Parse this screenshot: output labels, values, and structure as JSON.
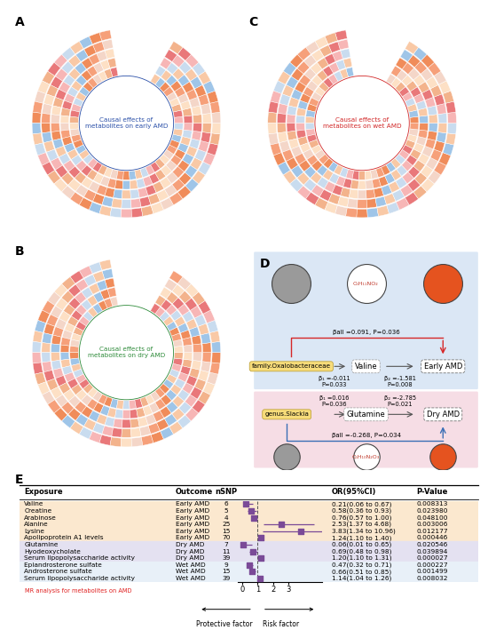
{
  "panels": [
    {
      "label": "A",
      "center_text": "Causal effects of\nmetabolites on early AMD",
      "color": "#2b50a8"
    },
    {
      "label": "B",
      "center_text": "Causal effects of\nmetabolites on dry AMD",
      "color": "#2e8b3a"
    },
    {
      "label": "C",
      "center_text": "Causal effects of\nmetabolites on wet AMD",
      "color": "#d22828"
    }
  ],
  "diagram": {
    "label": "D",
    "pathways": [
      {
        "exposure": "family.Oxalobacteraceae",
        "mediator": "Valine",
        "formula": "C₅H₁₁NO₂",
        "outcome": "Early AMD",
        "beta1": "β₁ =-0.011",
        "p1": "P=0.033",
        "beta2": "β₂ =-1.581",
        "p2": "P=0.008",
        "beta_all": "βall =0.091, P=0.036",
        "color": "#d62728"
      },
      {
        "exposure": "genus.Slackia",
        "mediator": "Glutamine",
        "formula": "C₅H₁₀N₂O₃",
        "outcome": "Dry AMD",
        "beta1": "β₁ =0.016",
        "p1": "P=0.036",
        "beta2": "β₂ =-2.785",
        "p2": "P=0.021",
        "beta_all": "βall =-0.268, P=0.034",
        "color": "#3b6fb6"
      }
    ]
  },
  "chart_data": {
    "type": "forest",
    "label": "E",
    "columns": [
      "Exposure",
      "Outcome",
      "nSNP",
      "OR(95%CI)",
      "P-Value"
    ],
    "xlim": [
      -0.3,
      5.2
    ],
    "xticks": [
      0,
      1,
      2,
      3
    ],
    "reference": 1,
    "color": "#7a4a97",
    "marker": "square",
    "left_label": "Protective factor",
    "right_label": "Risk factor",
    "caption": "MR analysis for metabolites on AMD",
    "rows": [
      {
        "exposure": "Valine",
        "outcome": "Early AMD",
        "nsnp": 6,
        "or": 0.21,
        "ci_low": 0.06,
        "ci_high": 0.67,
        "or_label": "0.21(0.06 to 0.67)",
        "p_value": "0.008313"
      },
      {
        "exposure": "Creatine",
        "outcome": "Early AMD",
        "nsnp": 5,
        "or": 0.58,
        "ci_low": 0.36,
        "ci_high": 0.93,
        "or_label": "0.58(0.36 to 0.93)",
        "p_value": "0.023980"
      },
      {
        "exposure": "Arabinose",
        "outcome": "Early AMD",
        "nsnp": 4,
        "or": 0.76,
        "ci_low": 0.57,
        "ci_high": 1.0,
        "or_label": "0.76(0.57 to 1.00)",
        "p_value": "0.048100"
      },
      {
        "exposure": "Alanine",
        "outcome": "Early AMD",
        "nsnp": 25,
        "or": 2.53,
        "ci_low": 1.37,
        "ci_high": 4.68,
        "or_label": "2.53(1.37 to 4.68)",
        "p_value": "0.003006"
      },
      {
        "exposure": "Lysine",
        "outcome": "Early AMD",
        "nsnp": 15,
        "or": 3.83,
        "ci_low": 1.34,
        "ci_high": 10.96,
        "or_label": "3.83(1.34 to 10.96)",
        "p_value": "0.012177"
      },
      {
        "exposure": "Apolipoprotein A1 levels",
        "outcome": "Early AMD",
        "nsnp": 70,
        "or": 1.24,
        "ci_low": 1.1,
        "ci_high": 1.4,
        "or_label": "1.24(1.10 to 1.40)",
        "p_value": "0.000446"
      },
      {
        "exposure": "Glutamine",
        "outcome": "Dry AMD",
        "nsnp": 7,
        "or": 0.06,
        "ci_low": 0.01,
        "ci_high": 0.65,
        "or_label": "0.06(0.01 to 0.65)",
        "p_value": "0.020546"
      },
      {
        "exposure": "Hyodeoxycholate",
        "outcome": "Dry AMD",
        "nsnp": 11,
        "or": 0.69,
        "ci_low": 0.48,
        "ci_high": 0.98,
        "or_label": "0.69(0.48 to 0.98)",
        "p_value": "0.039894"
      },
      {
        "exposure": "Serum lipopolysaccharide activity",
        "outcome": "Dry AMD",
        "nsnp": 39,
        "or": 1.2,
        "ci_low": 1.1,
        "ci_high": 1.31,
        "or_label": "1.20(1.10 to 1.31)",
        "p_value": "0.000027"
      },
      {
        "exposure": "Epiandrosterone sulfate",
        "outcome": "Wet AMD",
        "nsnp": 9,
        "or": 0.47,
        "ci_low": 0.32,
        "ci_high": 0.71,
        "or_label": "0.47(0.32 to 0.71)",
        "p_value": "0.000227"
      },
      {
        "exposure": "Androsterone sulfate",
        "outcome": "Wet AMD",
        "nsnp": 15,
        "or": 0.66,
        "ci_low": 0.51,
        "ci_high": 0.85,
        "or_label": "0.66(0.51 to 0.85)",
        "p_value": "0.001499"
      },
      {
        "exposure": "Serum lipopolysaccharide activity",
        "outcome": "Wet AMD",
        "nsnp": 39,
        "or": 1.14,
        "ci_low": 1.04,
        "ci_high": 1.26,
        "or_label": "1.14(1.04 to 1.26)",
        "p_value": "0.008032"
      }
    ]
  }
}
